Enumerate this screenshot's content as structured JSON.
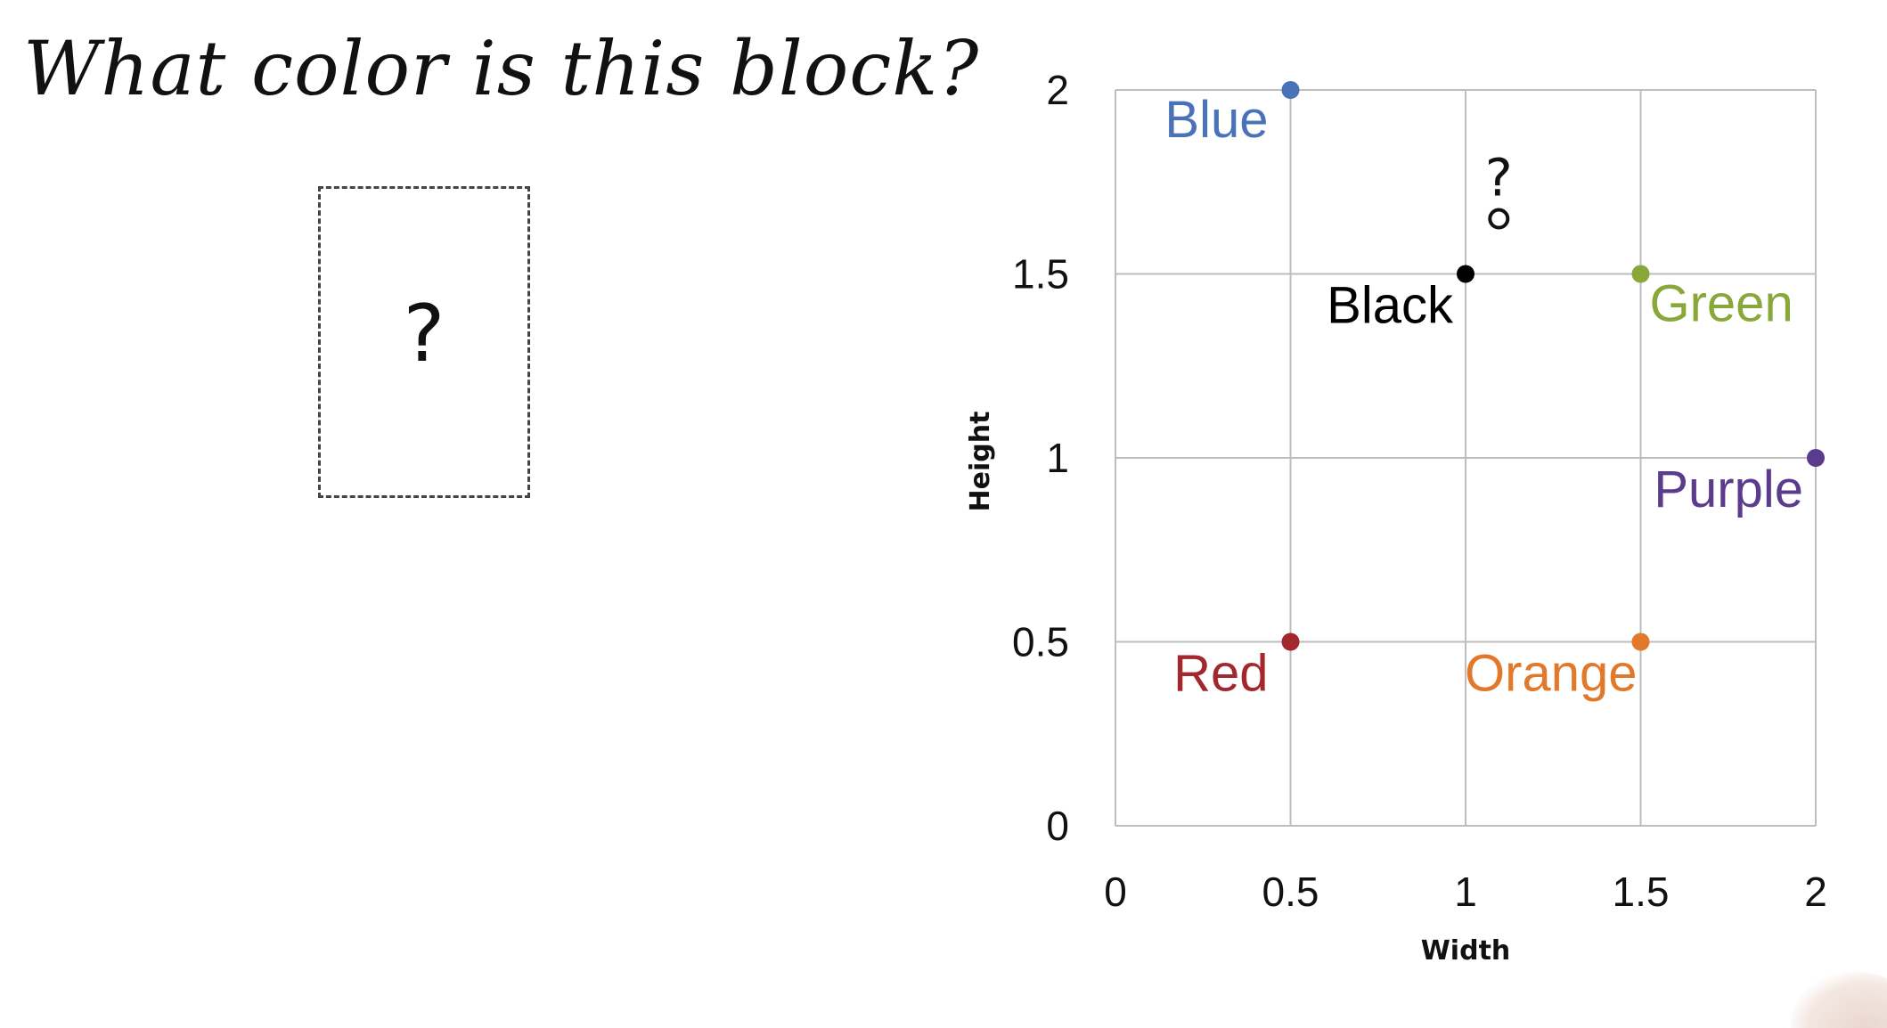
{
  "title": "What color is this block?",
  "block": {
    "label": "?"
  },
  "chart_data": {
    "type": "scatter",
    "xlabel": "Width",
    "ylabel": "Height",
    "xlim": [
      0,
      2
    ],
    "ylim": [
      0,
      2
    ],
    "x_ticks": [
      "0",
      "0.5",
      "1",
      "1.5",
      "2"
    ],
    "y_ticks": [
      "0",
      "0.5",
      "1",
      "1.5",
      "2"
    ],
    "grid": true,
    "points": [
      {
        "label": "Blue",
        "x": 0.5,
        "y": 2,
        "color": "#4a72b8"
      },
      {
        "label": "Black",
        "x": 1,
        "y": 1.5,
        "color": "#000000"
      },
      {
        "label": "Green",
        "x": 1.5,
        "y": 1.5,
        "color": "#8aa83a"
      },
      {
        "label": "Purple",
        "x": 2,
        "y": 1,
        "color": "#5b3b8c"
      },
      {
        "label": "Red",
        "x": 0.5,
        "y": 0.5,
        "color": "#a3282d"
      },
      {
        "label": "Orange",
        "x": 1.5,
        "y": 0.5,
        "color": "#e2782a"
      }
    ],
    "query_point": {
      "label": "?",
      "x": 1.1,
      "y": 1.65
    }
  }
}
